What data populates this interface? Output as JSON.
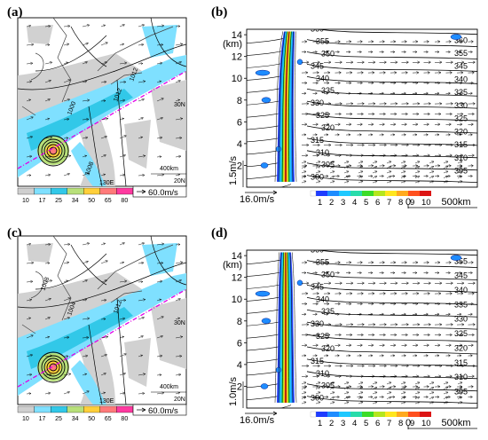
{
  "chart_data": [
    {
      "panel": "(a)",
      "type": "map",
      "isobar_labels": [
        "1012",
        "1008",
        "1000",
        "1012"
      ],
      "lat_labels": [
        "30N",
        "20N"
      ],
      "lon_label": "130E",
      "scale_label": "400km",
      "vector_label": "60.0m/s",
      "colorbar_ticks": [
        "10",
        "17",
        "25",
        "34",
        "50",
        "65",
        "80"
      ],
      "colorbar_colors": [
        "#cfcfcf",
        "#7fe0ff",
        "#32c8e8",
        "#b8e07a",
        "#ffcf3a",
        "#ff7a7a",
        "#ff3aa0"
      ]
    },
    {
      "panel": "(b)",
      "type": "cross-section",
      "ylabel": "(km)",
      "yticks": [
        2,
        4,
        6,
        8,
        10,
        12,
        14
      ],
      "ylim": [
        0,
        14.5
      ],
      "theta_contours": [
        "360",
        "355",
        "350",
        "345",
        "340",
        "335",
        "330",
        "325",
        "320",
        "315",
        "310",
        "305",
        "300"
      ],
      "right_labels": [
        "360",
        "355",
        "345",
        "340",
        "335",
        "330",
        "325",
        "320",
        "315",
        "310",
        "305"
      ],
      "vertical_vector_label": "1.5m/s",
      "horizontal_vector_label": "16.0m/s",
      "colorbar_ticks": [
        "1",
        "2",
        "3",
        "4",
        "5",
        "6",
        "7",
        "8",
        "9",
        "10"
      ],
      "colorbar_colors": [
        "#1e3cff",
        "#1e8cff",
        "#1ec8ff",
        "#28dcaa",
        "#3cdc28",
        "#b4e61e",
        "#ffe61e",
        "#ffaa1e",
        "#ff501e",
        "#dc1414"
      ],
      "scale_labels": [
        "0",
        "500km"
      ]
    },
    {
      "panel": "(c)",
      "type": "map",
      "isobar_labels": [
        "1004",
        "1008",
        "1012"
      ],
      "lat_labels": [
        "30N",
        "20N"
      ],
      "lon_label": "130E",
      "scale_label": "400km",
      "vector_label": "60.0m/s",
      "colorbar_ticks": [
        "10",
        "17",
        "25",
        "34",
        "50",
        "65",
        "80"
      ],
      "colorbar_colors": [
        "#cfcfcf",
        "#7fe0ff",
        "#32c8e8",
        "#b8e07a",
        "#ffcf3a",
        "#ff7a7a",
        "#ff3aa0"
      ]
    },
    {
      "panel": "(d)",
      "type": "cross-section",
      "ylabel": "(km)",
      "yticks": [
        2,
        4,
        6,
        8,
        10,
        12,
        14
      ],
      "ylim": [
        0,
        14.5
      ],
      "theta_contours": [
        "360",
        "355",
        "350",
        "345",
        "340",
        "335",
        "330",
        "325",
        "320",
        "315",
        "310",
        "305",
        "300"
      ],
      "right_labels": [
        "355",
        "345",
        "340",
        "335",
        "330",
        "325",
        "320",
        "315",
        "310",
        "305"
      ],
      "vertical_vector_label": "1.0m/s",
      "horizontal_vector_label": "16.0m/s",
      "colorbar_ticks": [
        "1",
        "2",
        "3",
        "4",
        "5",
        "6",
        "7",
        "8",
        "9",
        "10"
      ],
      "colorbar_colors": [
        "#1e3cff",
        "#1e8cff",
        "#1ec8ff",
        "#28dcaa",
        "#3cdc28",
        "#b4e61e",
        "#ffe61e",
        "#ffaa1e",
        "#ff501e",
        "#dc1414"
      ],
      "scale_labels": [
        "0",
        "500km"
      ]
    }
  ]
}
